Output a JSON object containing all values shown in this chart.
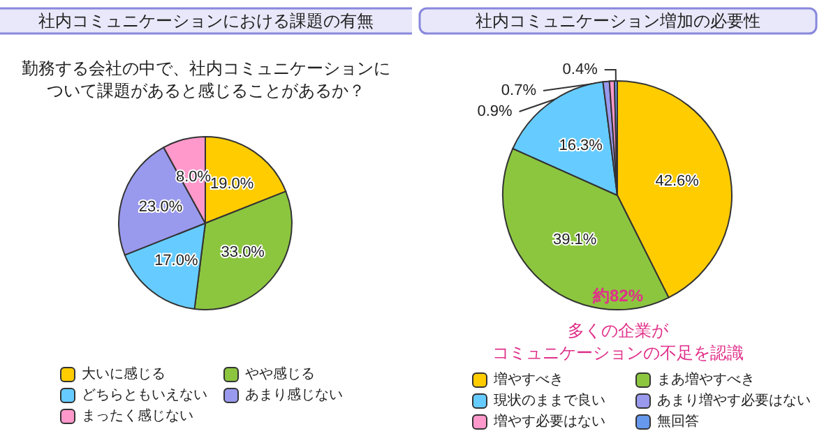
{
  "chart_data": [
    {
      "type": "pie",
      "title": "社内コミュニケーションにおける課題の有無",
      "subtitle": "勤務する会社の中で、社内コミュニケーションについて課題があると感じることがあるか？",
      "categories": [
        "大いに感じる",
        "やや感じる",
        "どちらともいえない",
        "あまり感じない",
        "まったく感じない"
      ],
      "values": [
        19.0,
        33.0,
        17.0,
        23.0,
        8.0
      ],
      "value_labels": [
        "19.0%",
        "33.0%",
        "17.0%",
        "23.0%",
        "8.0%"
      ],
      "colors": [
        "#ffcc00",
        "#8cc63f",
        "#66ccff",
        "#9999ee",
        "#ff99cc"
      ],
      "legend": "bottom"
    },
    {
      "type": "pie",
      "title": "社内コミュニケーション増加の必要性",
      "categories": [
        "増やすべき",
        "まあ増やすべき",
        "現状のままで良い",
        "あまり増やす必要はない",
        "増やす必要はない",
        "無回答"
      ],
      "values": [
        42.6,
        39.1,
        16.3,
        0.9,
        0.7,
        0.4
      ],
      "value_labels": [
        "42.6%",
        "39.1%",
        "16.3%",
        "0.9%",
        "0.7%",
        "0.4%"
      ],
      "colors": [
        "#ffcc00",
        "#8cc63f",
        "#66ccff",
        "#9999ee",
        "#ff99cc",
        "#6699ee"
      ],
      "legend": "bottom",
      "annotations": [
        "約82%",
        "多くの企業が",
        "コミュニケーションの不足を認識"
      ]
    }
  ]
}
